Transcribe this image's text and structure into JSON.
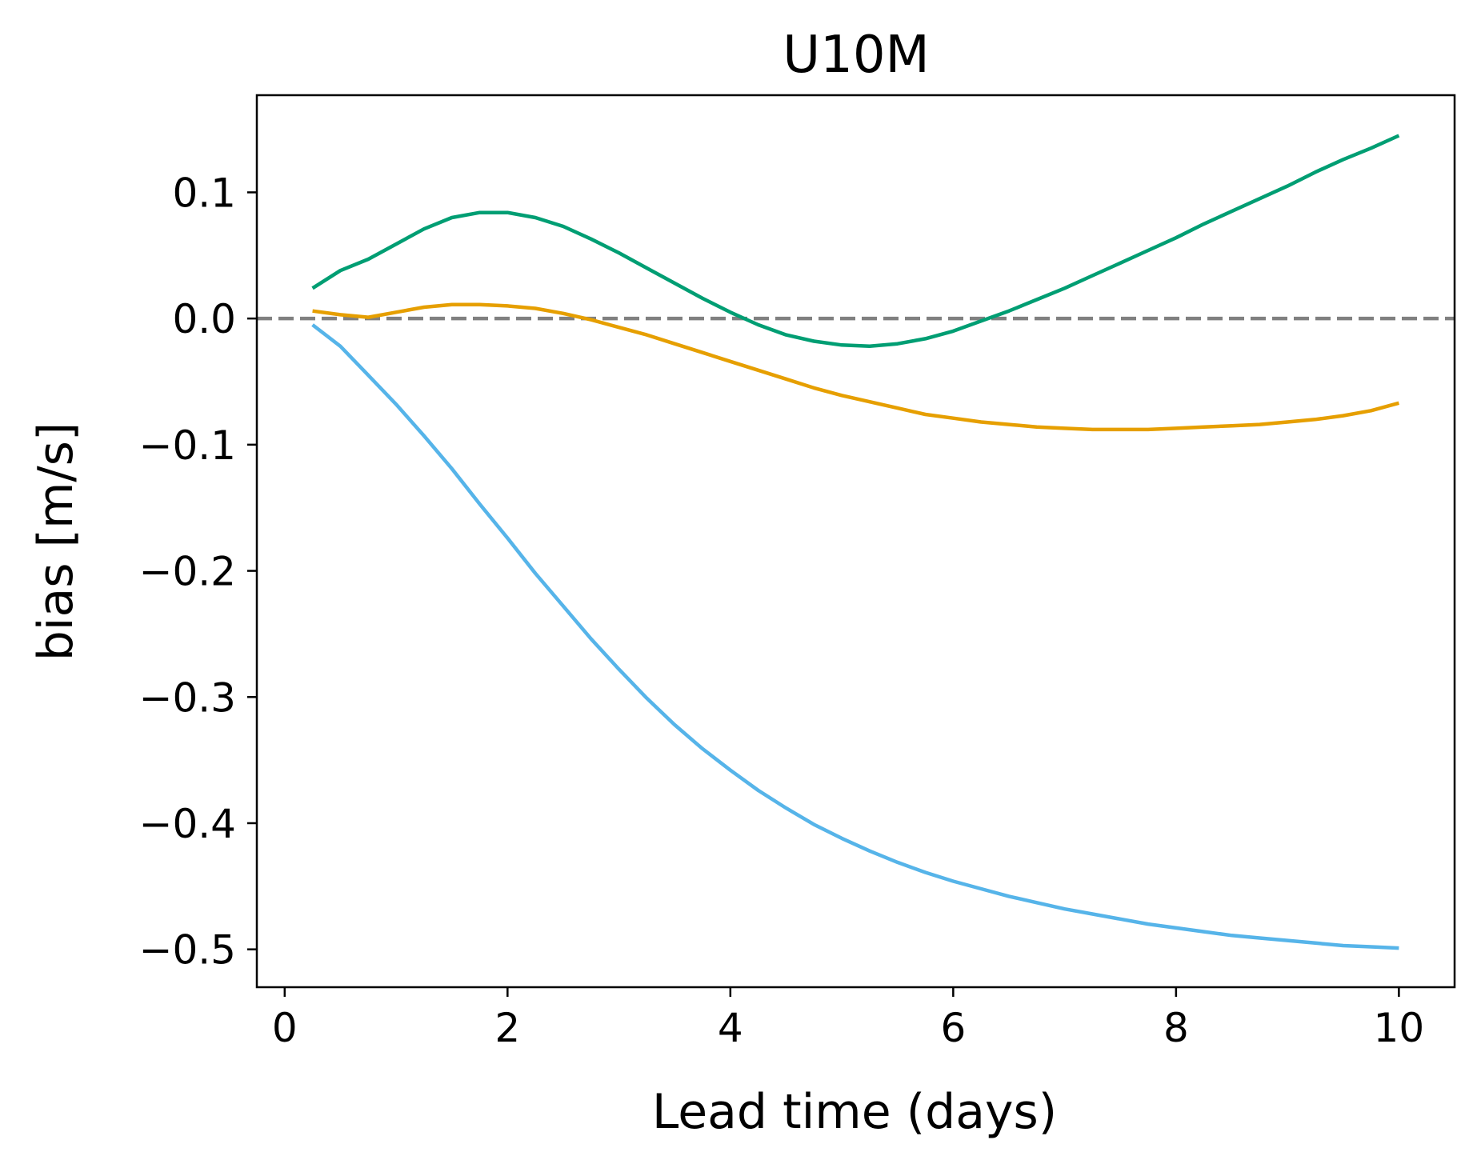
{
  "chart_data": {
    "type": "line",
    "title": "U10M",
    "xlabel": "Lead time (days)",
    "ylabel": "bias [m/s]",
    "xlim": [
      -0.25,
      10.5
    ],
    "ylim": [
      -0.53,
      0.177
    ],
    "xticks": [
      0,
      2,
      4,
      6,
      8,
      10
    ],
    "xtick_labels": [
      "0",
      "2",
      "4",
      "6",
      "8",
      "10"
    ],
    "yticks": [
      0.1,
      0.0,
      -0.1,
      -0.2,
      -0.3,
      -0.4,
      -0.5
    ],
    "ytick_labels": [
      "0.1",
      "0.0",
      "−0.1",
      "−0.2",
      "−0.3",
      "−0.4",
      "−0.5"
    ],
    "grid": false,
    "reference_line": {
      "y": 0.0,
      "style": "dashed",
      "color": "#808080"
    },
    "series": [
      {
        "color": "#009E73",
        "x": [
          0.25,
          0.5,
          0.75,
          1.0,
          1.25,
          1.5,
          1.75,
          2.0,
          2.25,
          2.5,
          2.75,
          3.0,
          3.25,
          3.5,
          3.75,
          4.0,
          4.25,
          4.5,
          4.75,
          5.0,
          5.25,
          5.5,
          5.75,
          6.0,
          6.25,
          6.5,
          6.75,
          7.0,
          7.25,
          7.5,
          7.75,
          8.0,
          8.25,
          8.5,
          8.75,
          9.0,
          9.25,
          9.5,
          9.75,
          10.0
        ],
        "values": [
          0.024,
          0.038,
          0.047,
          0.059,
          0.071,
          0.08,
          0.084,
          0.084,
          0.08,
          0.073,
          0.063,
          0.052,
          0.04,
          0.028,
          0.016,
          0.005,
          -0.005,
          -0.013,
          -0.018,
          -0.021,
          -0.022,
          -0.02,
          -0.016,
          -0.01,
          -0.002,
          0.006,
          0.015,
          0.024,
          0.034,
          0.044,
          0.054,
          0.064,
          0.075,
          0.085,
          0.095,
          0.105,
          0.116,
          0.126,
          0.135,
          0.145
        ]
      },
      {
        "color": "#E69F00",
        "x": [
          0.25,
          0.5,
          0.75,
          1.0,
          1.25,
          1.5,
          1.75,
          2.0,
          2.25,
          2.5,
          2.75,
          3.0,
          3.25,
          3.5,
          3.75,
          4.0,
          4.25,
          4.5,
          4.75,
          5.0,
          5.25,
          5.5,
          5.75,
          6.0,
          6.25,
          6.5,
          6.75,
          7.0,
          7.25,
          7.5,
          7.75,
          8.0,
          8.25,
          8.5,
          8.75,
          9.0,
          9.25,
          9.5,
          9.75,
          10.0
        ],
        "values": [
          0.006,
          0.003,
          0.001,
          0.005,
          0.009,
          0.011,
          0.011,
          0.01,
          0.008,
          0.004,
          -0.001,
          -0.007,
          -0.013,
          -0.02,
          -0.027,
          -0.034,
          -0.041,
          -0.048,
          -0.055,
          -0.061,
          -0.066,
          -0.071,
          -0.076,
          -0.079,
          -0.082,
          -0.084,
          -0.086,
          -0.087,
          -0.088,
          -0.088,
          -0.088,
          -0.087,
          -0.086,
          -0.085,
          -0.084,
          -0.082,
          -0.08,
          -0.077,
          -0.073,
          -0.067
        ]
      },
      {
        "color": "#56B4E9",
        "x": [
          0.25,
          0.5,
          0.75,
          1.0,
          1.25,
          1.5,
          1.75,
          2.0,
          2.25,
          2.5,
          2.75,
          3.0,
          3.25,
          3.5,
          3.75,
          4.0,
          4.25,
          4.5,
          4.75,
          5.0,
          5.25,
          5.5,
          5.75,
          6.0,
          6.25,
          6.5,
          6.75,
          7.0,
          7.25,
          7.5,
          7.75,
          8.0,
          8.25,
          8.5,
          8.75,
          9.0,
          9.25,
          9.5,
          9.75,
          10.0
        ],
        "values": [
          -0.005,
          -0.022,
          -0.045,
          -0.068,
          -0.093,
          -0.119,
          -0.147,
          -0.174,
          -0.202,
          -0.228,
          -0.254,
          -0.278,
          -0.301,
          -0.322,
          -0.341,
          -0.358,
          -0.374,
          -0.388,
          -0.401,
          -0.412,
          -0.422,
          -0.431,
          -0.439,
          -0.446,
          -0.452,
          -0.458,
          -0.463,
          -0.468,
          -0.472,
          -0.476,
          -0.48,
          -0.483,
          -0.486,
          -0.489,
          -0.491,
          -0.493,
          -0.495,
          -0.497,
          -0.498,
          -0.499
        ]
      }
    ]
  }
}
